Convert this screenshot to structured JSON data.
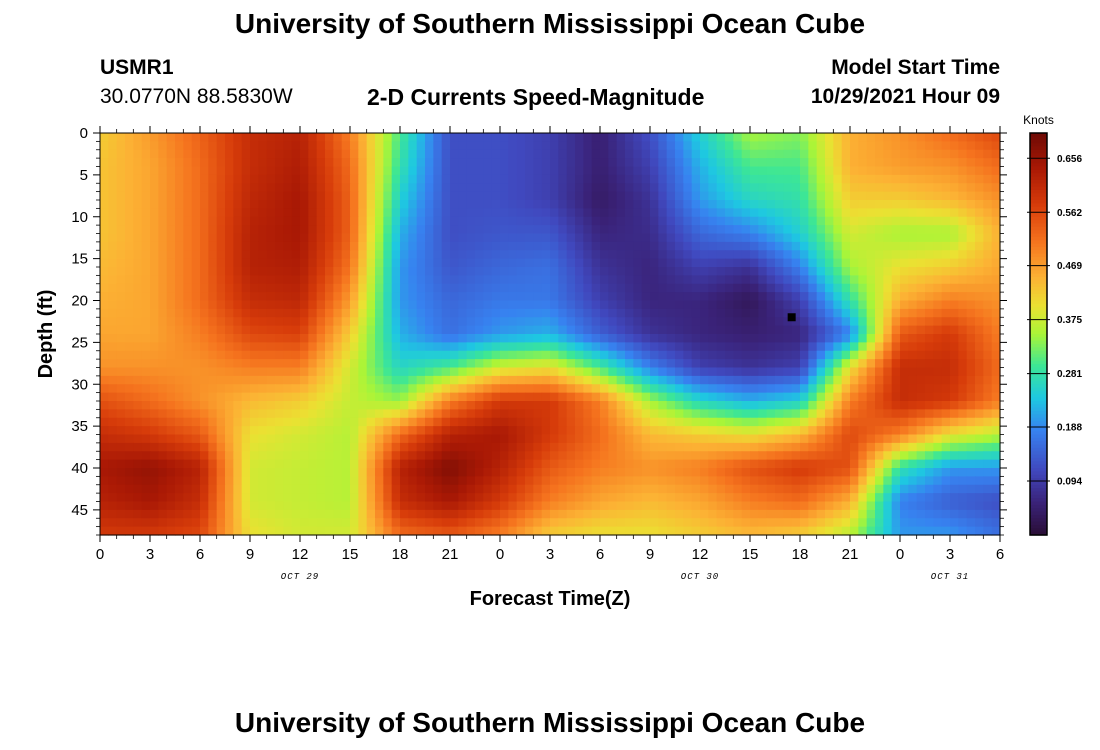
{
  "header": {
    "title": "University of Southern Mississippi Ocean Cube",
    "station_id": "USMR1",
    "coordinates": "30.0770N  88.5830W",
    "subtitle": "2-D Currents Speed-Magnitude",
    "model_start_label": "Model Start Time",
    "model_start_value": "10/29/2021 Hour 09"
  },
  "footer": {
    "title": "University of Southern Mississippi Ocean Cube"
  },
  "chart_data": {
    "type": "heatmap",
    "title": "2-D Currents Speed-Magnitude",
    "xlabel": "Forecast Time(Z)",
    "ylabel": "Depth (ft)",
    "x_range_hours": [
      0,
      54
    ],
    "x_ticks": [
      "0",
      "3",
      "6",
      "9",
      "12",
      "15",
      "18",
      "21",
      "0",
      "3",
      "6",
      "9",
      "12",
      "15",
      "18",
      "21",
      "0",
      "3",
      "6"
    ],
    "day_labels": [
      {
        "text": "OCT 29",
        "at_hour": 12
      },
      {
        "text": "OCT 30",
        "at_hour": 36
      },
      {
        "text": "OCT 31",
        "at_hour": 51
      }
    ],
    "y_range_ft": [
      0,
      48
    ],
    "y_ticks": [
      "0",
      "5",
      "10",
      "15",
      "20",
      "25",
      "30",
      "35",
      "40",
      "45"
    ],
    "colorbar": {
      "label": "Knots",
      "range": [
        0,
        0.7
      ],
      "ticks": [
        "0.656",
        "0.562",
        "0.469",
        "0.375",
        "0.281",
        "0.188",
        "0.094"
      ],
      "tick_values": [
        0.656,
        0.562,
        0.469,
        0.375,
        0.281,
        0.188,
        0.094
      ]
    },
    "marker": {
      "hour": 41.5,
      "depth_ft": 22
    },
    "speed_grid": {
      "hours": [
        0,
        3,
        6,
        9,
        12,
        15,
        18,
        21,
        24,
        27,
        30,
        33,
        36,
        39,
        42,
        45,
        48,
        51,
        54
      ],
      "depths_ft": [
        0,
        4,
        8,
        12,
        16,
        20,
        24,
        28,
        32,
        36,
        40,
        44,
        48
      ],
      "values_knots": [
        [
          0.42,
          0.47,
          0.53,
          0.6,
          0.62,
          0.5,
          0.3,
          0.12,
          0.12,
          0.1,
          0.05,
          0.12,
          0.25,
          0.35,
          0.33,
          0.45,
          0.48,
          0.52,
          0.56
        ],
        [
          0.43,
          0.46,
          0.52,
          0.6,
          0.63,
          0.52,
          0.28,
          0.12,
          0.12,
          0.1,
          0.05,
          0.1,
          0.22,
          0.3,
          0.3,
          0.45,
          0.47,
          0.48,
          0.52
        ],
        [
          0.43,
          0.46,
          0.52,
          0.61,
          0.64,
          0.53,
          0.25,
          0.12,
          0.12,
          0.1,
          0.04,
          0.08,
          0.2,
          0.26,
          0.28,
          0.42,
          0.42,
          0.44,
          0.48
        ],
        [
          0.43,
          0.46,
          0.52,
          0.62,
          0.64,
          0.53,
          0.22,
          0.12,
          0.13,
          0.13,
          0.06,
          0.07,
          0.15,
          0.18,
          0.25,
          0.38,
          0.35,
          0.35,
          0.45
        ],
        [
          0.44,
          0.46,
          0.52,
          0.62,
          0.63,
          0.51,
          0.2,
          0.13,
          0.15,
          0.16,
          0.08,
          0.06,
          0.1,
          0.08,
          0.18,
          0.35,
          0.4,
          0.42,
          0.46
        ],
        [
          0.45,
          0.46,
          0.52,
          0.6,
          0.61,
          0.47,
          0.2,
          0.15,
          0.17,
          0.17,
          0.1,
          0.06,
          0.06,
          0.03,
          0.1,
          0.28,
          0.45,
          0.5,
          0.48
        ],
        [
          0.46,
          0.46,
          0.5,
          0.56,
          0.57,
          0.42,
          0.22,
          0.16,
          0.2,
          0.22,
          0.14,
          0.08,
          0.06,
          0.05,
          0.06,
          0.18,
          0.54,
          0.58,
          0.5
        ],
        [
          0.48,
          0.48,
          0.48,
          0.5,
          0.5,
          0.38,
          0.26,
          0.3,
          0.38,
          0.4,
          0.3,
          0.18,
          0.1,
          0.08,
          0.1,
          0.4,
          0.6,
          0.6,
          0.52
        ],
        [
          0.55,
          0.52,
          0.48,
          0.44,
          0.42,
          0.37,
          0.34,
          0.5,
          0.58,
          0.58,
          0.5,
          0.35,
          0.26,
          0.22,
          0.25,
          0.5,
          0.6,
          0.58,
          0.5
        ],
        [
          0.6,
          0.58,
          0.54,
          0.4,
          0.38,
          0.36,
          0.52,
          0.62,
          0.64,
          0.58,
          0.52,
          0.44,
          0.42,
          0.4,
          0.44,
          0.56,
          0.5,
          0.4,
          0.36
        ],
        [
          0.64,
          0.66,
          0.62,
          0.38,
          0.37,
          0.36,
          0.62,
          0.68,
          0.62,
          0.54,
          0.5,
          0.48,
          0.5,
          0.55,
          0.58,
          0.55,
          0.28,
          0.2,
          0.2
        ],
        [
          0.62,
          0.64,
          0.6,
          0.38,
          0.37,
          0.36,
          0.6,
          0.64,
          0.58,
          0.5,
          0.46,
          0.44,
          0.46,
          0.5,
          0.52,
          0.45,
          0.18,
          0.14,
          0.12
        ],
        [
          0.58,
          0.58,
          0.56,
          0.4,
          0.38,
          0.38,
          0.52,
          0.54,
          0.5,
          0.42,
          0.4,
          0.4,
          0.42,
          0.44,
          0.42,
          0.36,
          0.2,
          0.2,
          0.16
        ]
      ]
    },
    "colors": {
      "background": "#ffffff",
      "axis": "#000000",
      "marker": "#000000"
    }
  }
}
